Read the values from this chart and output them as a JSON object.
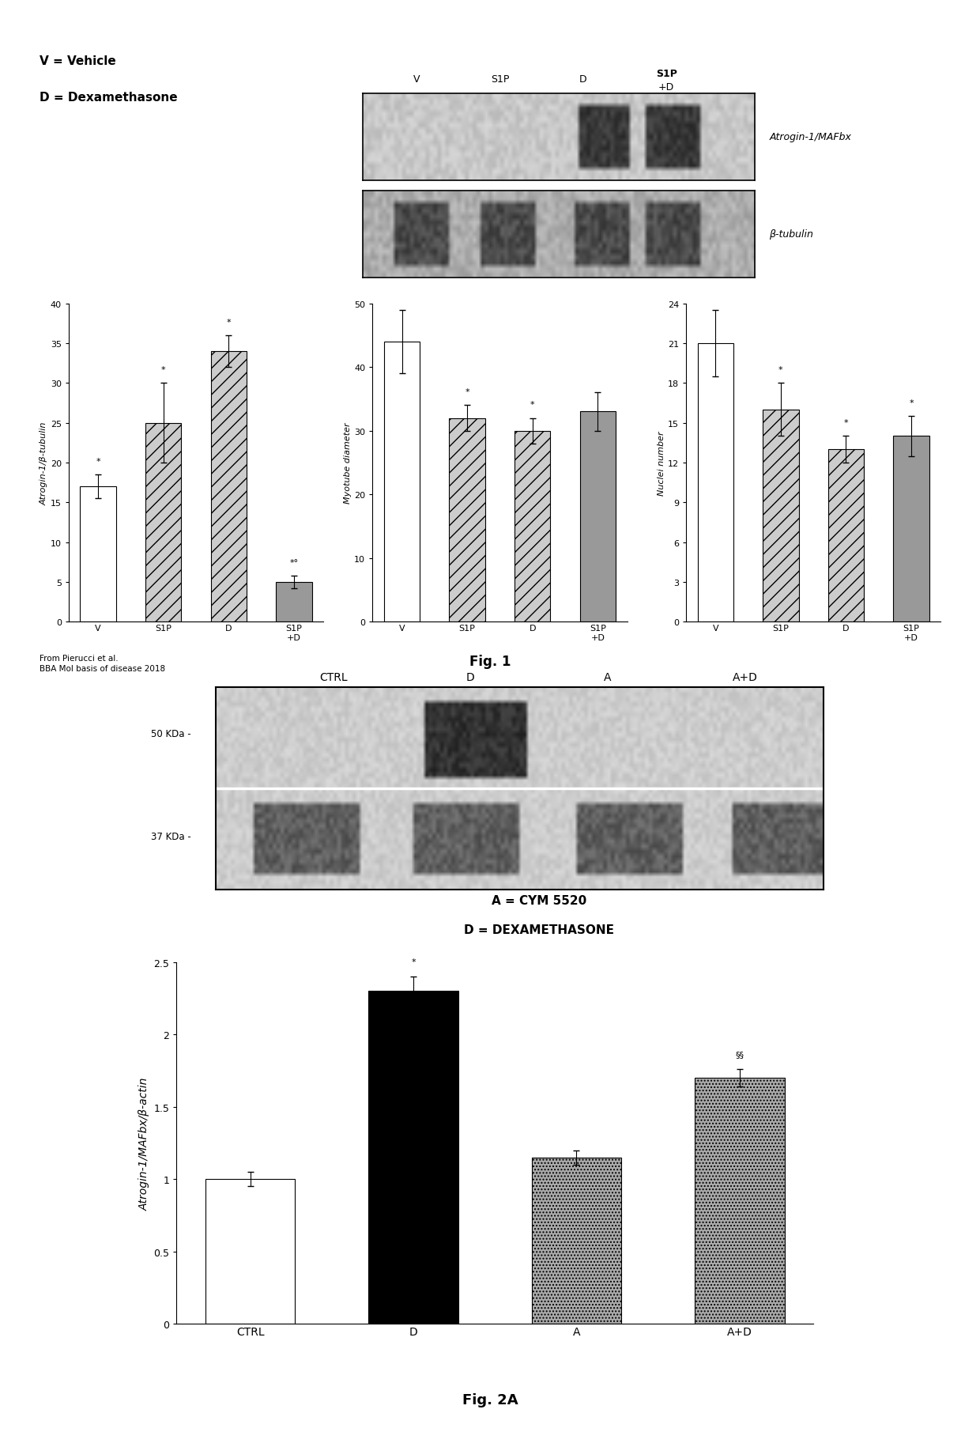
{
  "fig1_bar1_values": [
    17,
    25,
    34,
    5
  ],
  "fig1_bar1_errors": [
    1.5,
    5,
    2,
    0.8
  ],
  "fig1_bar1_labels": [
    "V",
    "S1P",
    "D",
    "S1P\n+D"
  ],
  "fig1_bar1_ylabel": "Atrogin-1/β-tubulin",
  "fig1_bar1_ylim": [
    0,
    40
  ],
  "fig1_bar1_yticks": [
    0,
    5,
    10,
    15,
    20,
    25,
    30,
    35,
    40
  ],
  "fig1_bar1_stars": [
    "*",
    "*",
    "*",
    "*°"
  ],
  "fig1_bar2_values": [
    44,
    32,
    30,
    33
  ],
  "fig1_bar2_errors": [
    5,
    2,
    2,
    3
  ],
  "fig1_bar2_labels": [
    "V",
    "S1P",
    "D",
    "S1P\n+D"
  ],
  "fig1_bar2_ylabel": "Myotube diameter",
  "fig1_bar2_ylim": [
    0,
    50
  ],
  "fig1_bar2_yticks": [
    0,
    10,
    20,
    30,
    40,
    50
  ],
  "fig1_bar2_stars": [
    "",
    "*",
    "*",
    ""
  ],
  "fig1_bar3_values": [
    21,
    16,
    13,
    14
  ],
  "fig1_bar3_errors": [
    2.5,
    2,
    1,
    1.5
  ],
  "fig1_bar3_labels": [
    "V",
    "S1P",
    "D",
    "S1P\n+D"
  ],
  "fig1_bar3_ylabel": "Nuclei number",
  "fig1_bar3_ylim": [
    0,
    24
  ],
  "fig1_bar3_yticks": [
    0,
    3,
    6,
    9,
    12,
    15,
    18,
    21,
    24
  ],
  "fig1_bar3_stars": [
    "",
    "*",
    "*",
    "*"
  ],
  "fig2_values": [
    1.0,
    2.3,
    1.15,
    1.7
  ],
  "fig2_errors": [
    0.05,
    0.1,
    0.05,
    0.06
  ],
  "fig2_labels": [
    "CTRL",
    "D",
    "A",
    "A+D"
  ],
  "fig2_ylabel": "Atrogin-1/MAFbx/β-actin",
  "fig2_ylim": [
    0,
    2.5
  ],
  "fig2_yticks": [
    0,
    0.5,
    1.0,
    1.5,
    2.0,
    2.5
  ],
  "fig2_stars": [
    "",
    "*",
    "",
    "§§"
  ],
  "bg_color": "#ffffff"
}
